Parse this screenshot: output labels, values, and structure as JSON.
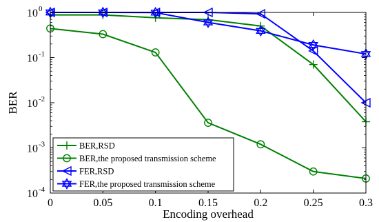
{
  "chart_data": {
    "type": "line",
    "title": "",
    "xlabel": "Encoding overhead",
    "ylabel": "BER",
    "x": [
      0,
      0.05,
      0.1,
      0.15,
      0.2,
      0.25,
      0.3
    ],
    "x_tick_labels": [
      "0",
      "0.05",
      "0.1",
      "0.15",
      "0.2",
      "0.25",
      "0.3"
    ],
    "xlim": [
      0,
      0.3
    ],
    "ylim": [
      0.0001,
      1
    ],
    "y_scale": "log",
    "y_tick_labels": [
      {
        "base": "10",
        "exp": "0"
      },
      {
        "base": "10",
        "exp": "-1"
      },
      {
        "base": "10",
        "exp": "-2"
      },
      {
        "base": "10",
        "exp": "-3"
      },
      {
        "base": "10",
        "exp": "-4"
      }
    ],
    "grid": false,
    "legend_position": "bottom-left",
    "series": [
      {
        "name": "BER,RSD",
        "color": "#008000",
        "marker": "plus",
        "values": [
          0.88,
          0.88,
          0.76,
          0.69,
          0.5,
          0.07,
          0.0038
        ]
      },
      {
        "name": "BER,the proposed transmission scheme",
        "color": "#008000",
        "marker": "circle",
        "values": [
          0.44,
          0.33,
          0.13,
          0.0036,
          0.0012,
          0.0003,
          0.00021
        ]
      },
      {
        "name": "FER,RSD",
        "color": "#0000ff",
        "marker": "triangle-left",
        "values": [
          1.0,
          1.0,
          1.0,
          1.0,
          0.93,
          0.14,
          0.01
        ]
      },
      {
        "name": "FER,the proposed transmission scheme",
        "color": "#0000ff",
        "marker": "hexagram",
        "values": [
          1.0,
          1.0,
          0.99,
          0.6,
          0.39,
          0.19,
          0.12
        ]
      }
    ]
  }
}
